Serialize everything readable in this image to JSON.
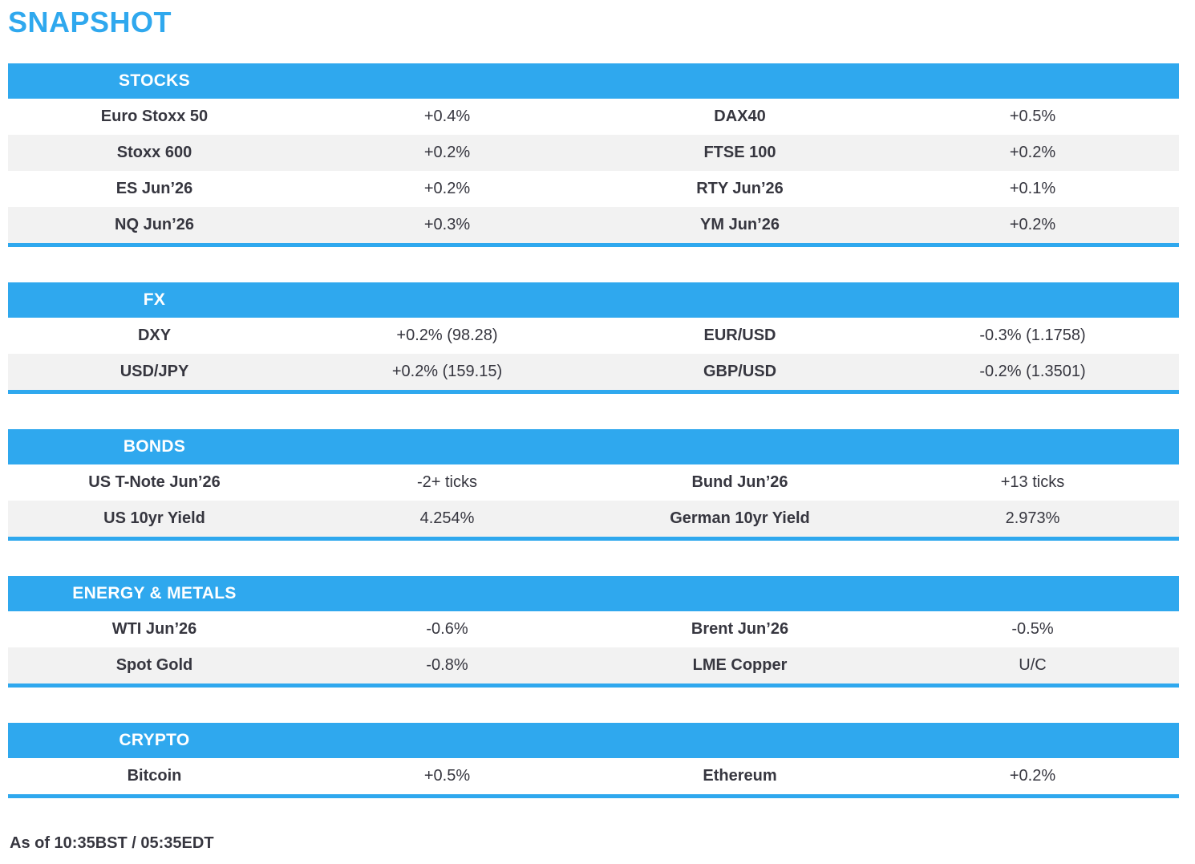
{
  "page": {
    "title": "SNAPSHOT",
    "as_of": "As of 10:35BST / 05:35EDT"
  },
  "colors": {
    "accent_blue": "#2fa8ee",
    "row_alt_gray": "#f2f2f2",
    "text_dark": "#36363f",
    "header_text": "#ffffff"
  },
  "sections": [
    {
      "title": "STOCKS",
      "rows": [
        [
          "Euro Stoxx 50",
          "+0.4%",
          "DAX40",
          "+0.5%"
        ],
        [
          "Stoxx 600",
          "+0.2%",
          "FTSE 100",
          "+0.2%"
        ],
        [
          "ES Jun’26",
          "+0.2%",
          "RTY Jun’26",
          "+0.1%"
        ],
        [
          "NQ Jun’26",
          "+0.3%",
          "YM Jun’26",
          "+0.2%"
        ]
      ]
    },
    {
      "title": "FX",
      "rows": [
        [
          "DXY",
          "+0.2% (98.28)",
          "EUR/USD",
          "-0.3% (1.1758)"
        ],
        [
          "USD/JPY",
          "+0.2% (159.15)",
          "GBP/USD",
          "-0.2% (1.3501)"
        ]
      ]
    },
    {
      "title": "BONDS",
      "rows": [
        [
          "US T-Note Jun’26",
          "-2+ ticks",
          "Bund Jun’26",
          "+13 ticks"
        ],
        [
          "US 10yr Yield",
          "4.254%",
          "German 10yr Yield",
          "2.973%"
        ]
      ]
    },
    {
      "title": "ENERGY & METALS",
      "rows": [
        [
          "WTI Jun’26",
          "-0.6%",
          "Brent Jun’26",
          "-0.5%"
        ],
        [
          "Spot Gold",
          "-0.8%",
          "LME Copper",
          "U/C"
        ]
      ]
    },
    {
      "title": "CRYPTO",
      "rows": [
        [
          "Bitcoin",
          "+0.5%",
          "Ethereum",
          "+0.2%"
        ]
      ]
    }
  ]
}
